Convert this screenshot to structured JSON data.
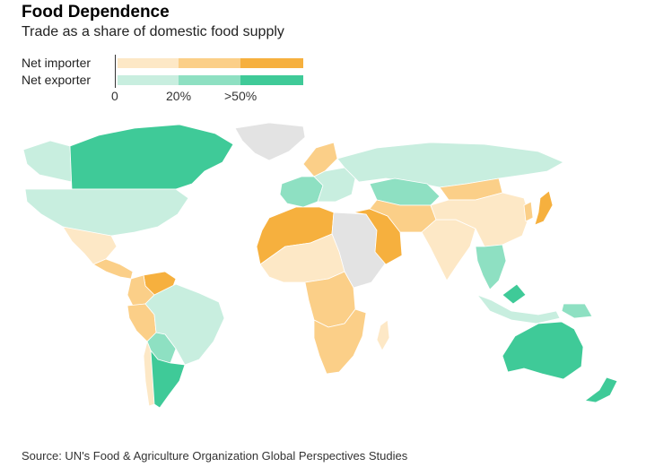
{
  "header": {
    "title": "Food Dependence",
    "subtitle": "Trade as a share of domestic food supply"
  },
  "legend": {
    "importer_label": "Net importer",
    "exporter_label": "Net exporter",
    "ticks": [
      "0",
      "20%",
      ">50%"
    ],
    "importer_colors": [
      "#fde8c6",
      "#fbcf88",
      "#f6b03e"
    ],
    "exporter_colors": [
      "#c8eedf",
      "#8ee0c2",
      "#3fca98"
    ]
  },
  "map_colors": {
    "no_data": "#e3e3e3",
    "ocean": "#ffffff"
  },
  "regions": [
    {
      "id": "greenland",
      "level": "nodata"
    },
    {
      "id": "canada",
      "level": "exporter-high"
    },
    {
      "id": "alaska",
      "level": "exporter-low"
    },
    {
      "id": "usa",
      "level": "exporter-low"
    },
    {
      "id": "mexico",
      "level": "importer-low"
    },
    {
      "id": "central-america",
      "level": "importer-mid"
    },
    {
      "id": "venezuela",
      "level": "importer-high"
    },
    {
      "id": "colombia-ecuador",
      "level": "importer-mid"
    },
    {
      "id": "peru",
      "level": "importer-mid"
    },
    {
      "id": "brazil",
      "level": "exporter-low"
    },
    {
      "id": "bolivia-paraguay",
      "level": "exporter-mid"
    },
    {
      "id": "chile",
      "level": "importer-low"
    },
    {
      "id": "argentina",
      "level": "exporter-high"
    },
    {
      "id": "north-africa",
      "level": "importer-high"
    },
    {
      "id": "west-africa",
      "level": "importer-low"
    },
    {
      "id": "central-africa",
      "level": "importer-mid"
    },
    {
      "id": "east-africa",
      "level": "nodata"
    },
    {
      "id": "southern-africa",
      "level": "importer-mid"
    },
    {
      "id": "madagascar",
      "level": "importer-low"
    },
    {
      "id": "western-europe",
      "level": "exporter-mid"
    },
    {
      "id": "scandinavia",
      "level": "importer-mid"
    },
    {
      "id": "eastern-europe",
      "level": "exporter-low"
    },
    {
      "id": "russia",
      "level": "exporter-low"
    },
    {
      "id": "kazakhstan",
      "level": "exporter-mid"
    },
    {
      "id": "middle-east",
      "level": "importer-high"
    },
    {
      "id": "iran-central-asia",
      "level": "importer-mid"
    },
    {
      "id": "south-asia",
      "level": "importer-low"
    },
    {
      "id": "mongolia",
      "level": "importer-mid"
    },
    {
      "id": "china",
      "level": "importer-low"
    },
    {
      "id": "japan",
      "level": "importer-high"
    },
    {
      "id": "korea",
      "level": "importer-mid"
    },
    {
      "id": "southeast-asia",
      "level": "exporter-mid"
    },
    {
      "id": "indonesia",
      "level": "exporter-low"
    },
    {
      "id": "malaysia",
      "level": "exporter-high"
    },
    {
      "id": "new-guinea",
      "level": "exporter-mid"
    },
    {
      "id": "australia",
      "level": "exporter-high"
    },
    {
      "id": "new-zealand",
      "level": "exporter-high"
    }
  ],
  "footer": {
    "source": "Source: UN's Food & Agriculture Organization Global Perspectives Studies"
  }
}
